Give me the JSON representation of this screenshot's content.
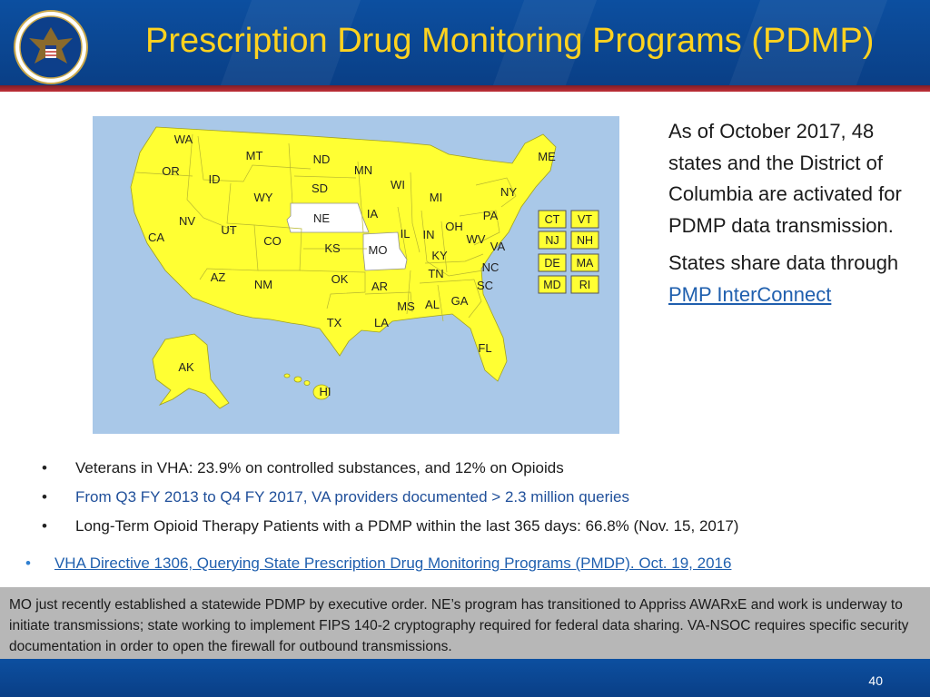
{
  "header": {
    "title": "Prescription Drug Monitoring Programs (PDMP)"
  },
  "map": {
    "active_color": "#ffff33",
    "inactive_color": "#ffffff",
    "background_color": "#a9c8e8",
    "inactive_states": [
      "NE",
      "MO"
    ],
    "state_labels": [
      "WA",
      "OR",
      "CA",
      "ID",
      "NV",
      "MT",
      "WY",
      "UT",
      "AZ",
      "CO",
      "NM",
      "ND",
      "SD",
      "NE",
      "KS",
      "OK",
      "TX",
      "MN",
      "IA",
      "MO",
      "AR",
      "LA",
      "WI",
      "IL",
      "MI",
      "IN",
      "KY",
      "TN",
      "MS",
      "AL",
      "GA",
      "FL",
      "OH",
      "WV",
      "VA",
      "NC",
      "SC",
      "PA",
      "NY",
      "ME",
      "AK",
      "HI"
    ],
    "box_labels": [
      "CT",
      "VT",
      "NJ",
      "NH",
      "DE",
      "MA",
      "MD",
      "RI"
    ]
  },
  "side_text": {
    "paragraph1": "As of October 2017, 48 states and the District of Columbia are activated for PDMP data transmission.",
    "paragraph2_prefix": "States share data through ",
    "paragraph2_link": "PMP InterConnect"
  },
  "bullets": [
    "Veterans in VHA: 23.9% on controlled substances, and 12% on Opioids",
    "From Q3 FY 2013 to Q4 FY 2017, VA providers documented > 2.3 million queries",
    "Long-Term Opioid Therapy Patients with a PDMP within the last 365 days: 66.8% (Nov. 15, 2017)"
  ],
  "directive": {
    "bullet": "•",
    "link_text": "VHA Directive 1306, Querying State Prescription Drug Monitoring Programs (PMDP). Oct. 19, 2016"
  },
  "note": "MO just recently established a statewide PDMP by executive order.   NE’s program has transitioned to Appriss AWARxE and work is underway to initiate transmissions; state working to implement FIPS 140-2 cryptography required for federal data sharing.   VA-NSOC requires specific security documentation in order to open the firewall for outbound transmissions.",
  "footer": {
    "page_number": "40"
  }
}
